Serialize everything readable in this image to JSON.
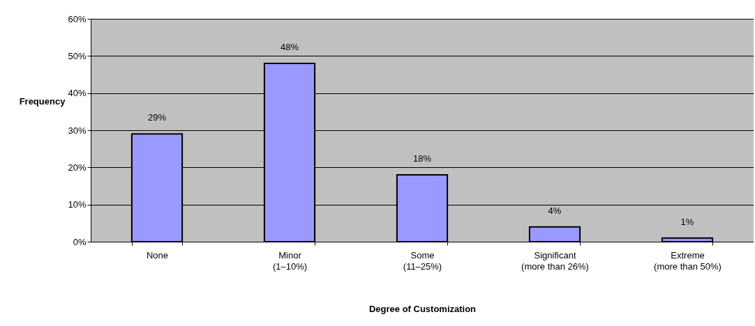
{
  "chart_data": {
    "type": "bar",
    "xlabel": "Degree of Customization",
    "ylabel": "Frequency",
    "categories": [
      "None",
      "Minor\n(1–10%)",
      "Some\n(11–25%)",
      "Significant\n(more than 26%)",
      "Extreme\n(more than 50%)"
    ],
    "values": [
      29,
      48,
      18,
      4,
      1
    ],
    "value_labels": [
      "29%",
      "48%",
      "18%",
      "4%",
      "1%"
    ],
    "color": "#9999ff",
    "ylim": [
      0,
      60
    ],
    "yticks": [
      {
        "value": 0,
        "label": "0%"
      },
      {
        "value": 10,
        "label": "10%"
      },
      {
        "value": 20,
        "label": "20%"
      },
      {
        "value": 30,
        "label": "30%"
      },
      {
        "value": 40,
        "label": "40%"
      },
      {
        "value": 50,
        "label": "50%"
      },
      {
        "value": 60,
        "label": "60%"
      }
    ],
    "grid": "y"
  }
}
